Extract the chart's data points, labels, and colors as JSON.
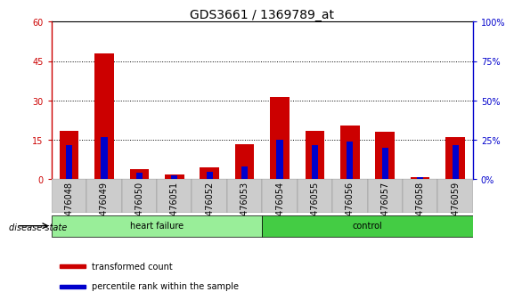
{
  "title": "GDS3661 / 1369789_at",
  "samples": [
    "GSM476048",
    "GSM476049",
    "GSM476050",
    "GSM476051",
    "GSM476052",
    "GSM476053",
    "GSM476054",
    "GSM476055",
    "GSM476056",
    "GSM476057",
    "GSM476058",
    "GSM476059"
  ],
  "red_values": [
    18.5,
    48.0,
    4.0,
    2.0,
    4.5,
    13.5,
    31.5,
    18.5,
    20.5,
    18.0,
    1.0,
    16.0
  ],
  "blue_values_pct": [
    22,
    27,
    4,
    2.5,
    5,
    8,
    25,
    22,
    24,
    20,
    1.5,
    22
  ],
  "heart_failure_indices": [
    0,
    1,
    2,
    3,
    4,
    5
  ],
  "control_indices": [
    6,
    7,
    8,
    9,
    10,
    11
  ],
  "ylim_left": [
    0,
    60
  ],
  "ylim_right": [
    0,
    100
  ],
  "yticks_left": [
    0,
    15,
    30,
    45,
    60
  ],
  "yticks_right": [
    0,
    25,
    50,
    75,
    100
  ],
  "ytick_labels_left": [
    "0",
    "15",
    "30",
    "45",
    "60"
  ],
  "ytick_labels_right": [
    "0%",
    "25%",
    "50%",
    "75%",
    "100%"
  ],
  "red_color": "#CC0000",
  "blue_color": "#0000CC",
  "hf_color": "#99EE99",
  "ctrl_color": "#44CC44",
  "xtick_bg_color": "#CCCCCC",
  "bar_width": 0.55,
  "blue_bar_width": 0.18,
  "legend_red": "transformed count",
  "legend_blue": "percentile rank within the sample",
  "disease_state_label": "disease state",
  "hf_label": "heart failure",
  "ctrl_label": "control",
  "title_fontsize": 10,
  "tick_fontsize": 7,
  "label_fontsize": 8
}
